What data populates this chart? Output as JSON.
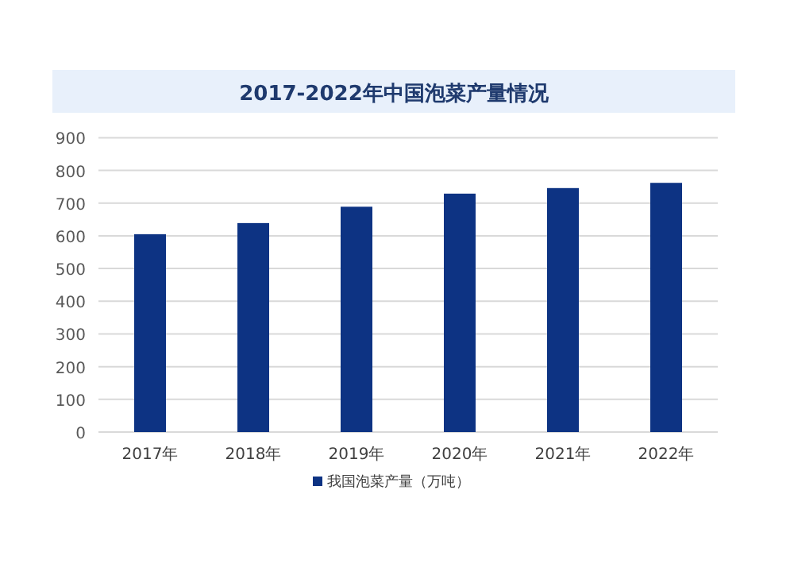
{
  "chart_data": {
    "type": "bar",
    "title": "2017-2022年中国泡菜产量情况",
    "categories": [
      "2017年",
      "2018年",
      "2019年",
      "2020年",
      "2021年",
      "2022年"
    ],
    "series": [
      {
        "name": "我国泡菜产量（万吨）",
        "color": "#0d3383",
        "values": [
          605,
          639,
          689,
          729,
          746,
          762
        ]
      }
    ],
    "ylim": [
      0,
      900
    ],
    "yticks": [
      0,
      100,
      200,
      300,
      400,
      500,
      600,
      700,
      800,
      900
    ],
    "grid": "y",
    "legend": "bottom"
  }
}
